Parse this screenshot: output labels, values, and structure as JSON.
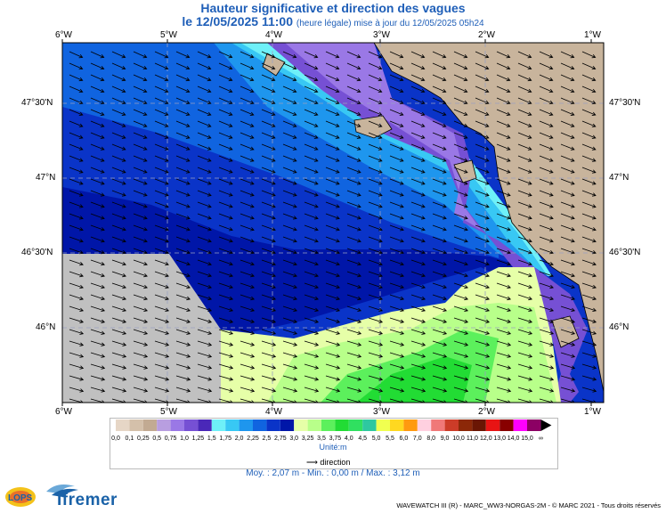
{
  "header": {
    "title": "Hauteur significative et direction des vagues",
    "date_line": "le 12/05/2025 11:00",
    "date_note": "(heure légale) mise à jour du 12/05/2025 05h24"
  },
  "map": {
    "lon_labels": [
      "6°W",
      "5°W",
      "4°W",
      "3°W",
      "2°W",
      "1°W"
    ],
    "lat_labels": [
      "47°30'N",
      "47°N",
      "46°30'N",
      "46°N"
    ],
    "no_data_color": "#c0c0c0",
    "land_color": "#c8b49c"
  },
  "legend": {
    "values": [
      "0,0",
      "0,1",
      "0,25",
      "0,5",
      "0,75",
      "1,0",
      "1,25",
      "1,5",
      "1,75",
      "2,0",
      "2,25",
      "2,5",
      "2,75",
      "3,0",
      "3,25",
      "3,5",
      "3,75",
      "4,0",
      "4,5",
      "5,0",
      "5,5",
      "6,0",
      "7,0",
      "8,0",
      "9,0",
      "10,0",
      "11,0",
      "12,0",
      "13,0",
      "14,0",
      "15,0",
      "∞"
    ],
    "colors": [
      "#e6d6c6",
      "#d4c0aa",
      "#c2aa92",
      "#b89ee0",
      "#9a78e6",
      "#7650d4",
      "#4a28b8",
      "#6ef0f8",
      "#38c8f4",
      "#1e96ee",
      "#1064e0",
      "#0a34c8",
      "#0016a8",
      "#e6ffa8",
      "#b8ff8a",
      "#5cf05c",
      "#22dc34",
      "#30e060",
      "#2ec8a0",
      "#f0ff50",
      "#ffd820",
      "#ff9a10",
      "#ffd0e0",
      "#f07878",
      "#cc3c28",
      "#8c2808",
      "#6a1604",
      "#e81414",
      "#880000",
      "#ff00ff",
      "#8c0064"
    ],
    "unit": "Unité:m",
    "direction_label": "direction"
  },
  "stats": "Moy. : 2,07 m   -   Min. : 0,00 m / Max. : 3,12 m",
  "footer": "WAVEWATCH III (R) - MARC_WW3-NORGAS-2M - © MARC 2021 - Tous droits réservés",
  "logos": {
    "lops": "LOPS",
    "ifremer": "Ifremer"
  }
}
